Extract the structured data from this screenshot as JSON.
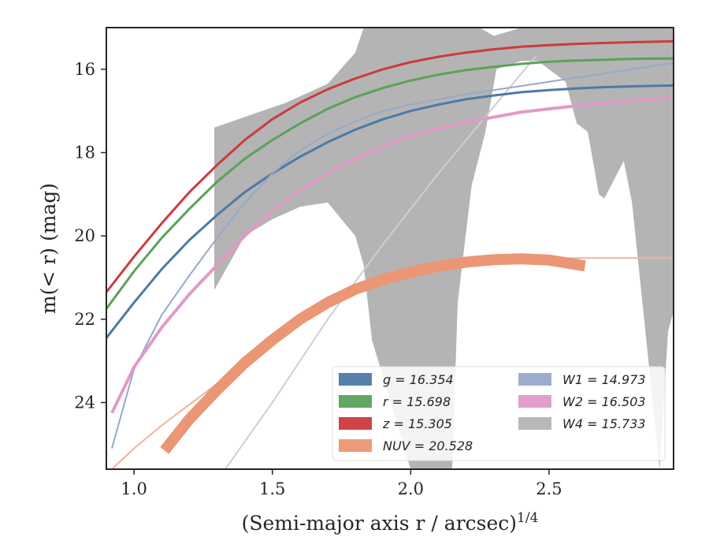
{
  "chart_data": {
    "type": "line",
    "title": "",
    "xlabel": "(Semi-major axis r / arcsec)",
    "xlabel_superscript": "1/4",
    "ylabel": "m(< r) (mag)",
    "xlim": [
      0.9,
      2.95
    ],
    "ylim": [
      25.6,
      15.0
    ],
    "y_inverted": true,
    "grid": false,
    "legend_position": "lower-right",
    "xticks": [
      1.0,
      1.5,
      2.0,
      2.5
    ],
    "xtick_labels": [
      "1.0",
      "1.5",
      "2.0",
      "2.5"
    ],
    "yticks": [
      16,
      18,
      20,
      22,
      24
    ],
    "ytick_labels": [
      "16",
      "18",
      "20",
      "22",
      "24"
    ],
    "series": [
      {
        "name": "g = 16.354",
        "color": "#4c7aa8",
        "width": 3,
        "x": [
          0.9,
          1.0,
          1.1,
          1.2,
          1.3,
          1.4,
          1.5,
          1.6,
          1.7,
          1.8,
          1.9,
          2.0,
          2.1,
          2.2,
          2.3,
          2.4,
          2.5,
          2.6,
          2.7,
          2.8,
          2.95
        ],
        "y": [
          22.45,
          21.6,
          20.8,
          20.1,
          19.5,
          18.95,
          18.5,
          18.1,
          17.75,
          17.45,
          17.2,
          17.0,
          16.85,
          16.72,
          16.63,
          16.55,
          16.5,
          16.46,
          16.43,
          16.41,
          16.39
        ]
      },
      {
        "name": "r = 15.698",
        "color": "#5aa25a",
        "width": 3,
        "x": [
          0.9,
          1.0,
          1.1,
          1.2,
          1.3,
          1.4,
          1.5,
          1.6,
          1.7,
          1.8,
          1.9,
          2.0,
          2.1,
          2.2,
          2.3,
          2.4,
          2.5,
          2.6,
          2.7,
          2.8,
          2.95
        ],
        "y": [
          21.75,
          20.85,
          20.05,
          19.35,
          18.7,
          18.15,
          17.7,
          17.3,
          16.95,
          16.67,
          16.45,
          16.27,
          16.13,
          16.02,
          15.94,
          15.87,
          15.82,
          15.79,
          15.77,
          15.75,
          15.74
        ]
      },
      {
        "name": "z = 15.305",
        "color": "#cc3b3d",
        "width": 3,
        "x": [
          0.9,
          1.0,
          1.1,
          1.2,
          1.3,
          1.4,
          1.5,
          1.6,
          1.7,
          1.8,
          1.9,
          2.0,
          2.1,
          2.2,
          2.3,
          2.4,
          2.5,
          2.6,
          2.7,
          2.8,
          2.95
        ],
        "y": [
          21.35,
          20.5,
          19.7,
          18.95,
          18.3,
          17.7,
          17.2,
          16.8,
          16.48,
          16.22,
          16.0,
          15.83,
          15.7,
          15.6,
          15.52,
          15.46,
          15.42,
          15.39,
          15.37,
          15.35,
          15.33
        ]
      },
      {
        "name": "NUV = 20.528",
        "color": "#eb9674",
        "width": 14,
        "x": [
          1.11,
          1.2,
          1.3,
          1.4,
          1.5,
          1.6,
          1.7,
          1.8,
          1.9,
          2.0,
          2.1,
          2.2,
          2.3,
          2.4,
          2.5,
          2.63
        ],
        "y": [
          25.15,
          24.4,
          23.7,
          23.05,
          22.5,
          22.0,
          21.6,
          21.28,
          21.05,
          20.87,
          20.73,
          20.63,
          20.57,
          20.55,
          20.58,
          20.72
        ]
      },
      {
        "name": "W1 = 14.973",
        "color": "#97a8cc",
        "width": 2,
        "x": [
          0.92,
          1.0,
          1.1,
          1.2,
          1.3,
          1.4,
          1.5,
          1.6,
          1.7,
          1.8,
          1.9,
          2.0,
          2.2,
          2.4,
          2.6,
          2.8,
          2.95
        ],
        "y": [
          25.1,
          23.2,
          21.9,
          20.95,
          20.05,
          19.2,
          18.5,
          17.95,
          17.55,
          17.25,
          17.0,
          16.85,
          16.6,
          16.4,
          16.2,
          16.0,
          15.85
        ]
      },
      {
        "name": "W2 = 16.503",
        "color": "#e09ac8",
        "width": 4,
        "x": [
          0.92,
          1.0,
          1.1,
          1.2,
          1.3,
          1.4,
          1.5,
          1.6,
          1.7,
          1.8,
          1.9,
          2.0,
          2.1,
          2.2,
          2.3,
          2.4,
          2.5,
          2.6,
          2.7,
          2.8,
          2.95
        ],
        "y": [
          24.25,
          23.15,
          22.2,
          21.4,
          20.7,
          20.0,
          19.4,
          18.9,
          18.5,
          18.15,
          17.85,
          17.6,
          17.42,
          17.27,
          17.15,
          17.03,
          16.95,
          16.88,
          16.82,
          16.75,
          16.68
        ]
      }
    ],
    "thin_lines": [
      {
        "name": "NUV-extrapolation",
        "color": "#f0b49c",
        "width": 2,
        "x": [
          0.92,
          1.0,
          1.1,
          1.2,
          1.3,
          1.4,
          1.5,
          1.6,
          1.7,
          1.8,
          1.9,
          2.0,
          2.2,
          2.4,
          2.6,
          2.8,
          2.95
        ],
        "y": [
          25.6,
          25.1,
          24.55,
          24.05,
          23.55,
          23.05,
          22.55,
          22.1,
          21.7,
          21.35,
          21.08,
          20.88,
          20.65,
          20.55,
          20.53,
          20.53,
          20.53
        ]
      },
      {
        "name": "W4-curve",
        "color": "#cfcfcf",
        "width": 2,
        "x": [
          1.33,
          1.5,
          1.7,
          1.9,
          2.1,
          2.3,
          2.45
        ],
        "y": [
          25.6,
          24.0,
          22.0,
          20.2,
          18.5,
          16.9,
          15.7
        ]
      }
    ],
    "band": {
      "name": "W4 = 15.733",
      "color": "#b4b4b4",
      "upper": {
        "x": [
          1.29,
          1.55,
          1.7,
          1.8,
          1.83,
          1.9,
          2.0,
          2.1,
          2.2,
          2.25,
          2.3,
          2.4,
          2.5,
          2.6,
          2.7,
          2.8,
          2.95
        ],
        "y": [
          17.4,
          16.8,
          16.35,
          15.6,
          15.0,
          15.0,
          15.0,
          15.0,
          15.0,
          15.0,
          15.2,
          15.0,
          15.0,
          15.0,
          15.0,
          15.0,
          15.0
        ]
      },
      "lower": {
        "x": [
          1.29,
          1.4,
          1.5,
          1.6,
          1.7,
          1.8,
          1.83,
          1.86,
          2.0,
          2.15,
          2.17,
          2.22,
          2.27,
          2.31,
          2.4,
          2.46,
          2.56,
          2.6,
          2.64,
          2.68,
          2.7,
          2.77,
          2.8,
          2.9,
          2.93,
          2.95
        ],
        "y": [
          21.3,
          20.0,
          19.6,
          19.3,
          19.2,
          20.0,
          20.7,
          22.5,
          25.6,
          25.6,
          21.6,
          18.8,
          17.5,
          16.0,
          15.8,
          15.8,
          16.3,
          17.3,
          17.5,
          19.0,
          19.1,
          18.2,
          19.2,
          25.6,
          22.3,
          21.8
        ]
      }
    },
    "legend": [
      {
        "label": "g = 16.354",
        "color": "#4c7aa8"
      },
      {
        "label": "r = 15.698",
        "color": "#5aa25a"
      },
      {
        "label": "z = 15.305",
        "color": "#cc3b3d"
      },
      {
        "label": "NUV = 20.528",
        "color": "#eb9674"
      },
      {
        "label": "W1 = 14.973",
        "color": "#97a8cc"
      },
      {
        "label": "W2 = 16.503",
        "color": "#e09ac8"
      },
      {
        "label": "W4 = 15.733",
        "color": "#b4b4b4"
      }
    ]
  }
}
